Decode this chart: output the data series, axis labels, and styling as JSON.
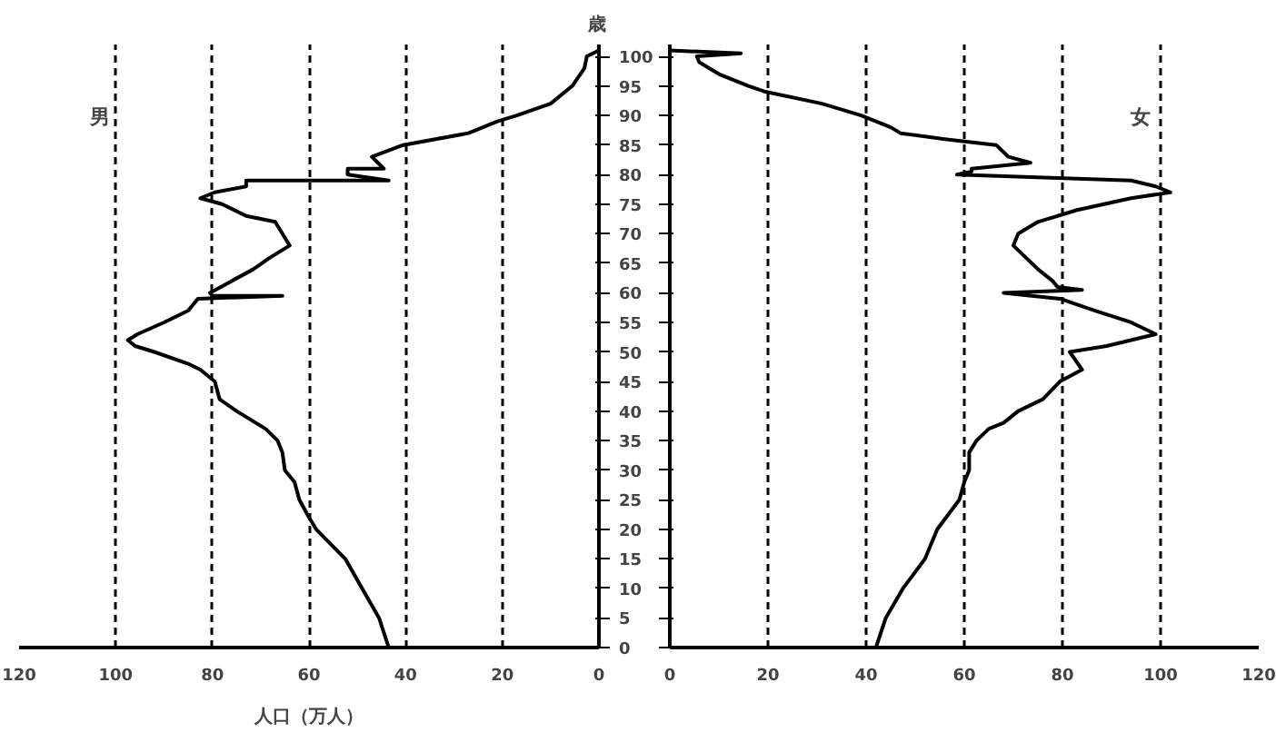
{
  "chart_data": [
    {
      "type": "line",
      "orientation": "horizontal",
      "ylabel": "歳",
      "xlabel": "人口（万人）",
      "xlim": [
        120,
        0
      ],
      "xticks": [
        120,
        100,
        80,
        60,
        40,
        20,
        0
      ],
      "ylim": [
        0,
        102
      ],
      "yticks": [
        0,
        5,
        10,
        15,
        20,
        25,
        30,
        35,
        40,
        45,
        50,
        55,
        60,
        65,
        70,
        75,
        80,
        85,
        90,
        95,
        100
      ],
      "grid": "x",
      "series": [
        {
          "name": "男",
          "color": "#000000",
          "x": [
            0,
            5,
            10,
            15,
            20,
            22,
            25,
            28,
            30,
            33,
            35,
            37,
            40,
            42,
            45,
            47,
            48,
            50,
            51,
            52,
            53,
            55,
            57,
            59,
            59.5,
            59.5,
            60,
            62,
            64,
            66,
            68,
            70,
            72,
            73,
            75,
            76,
            77,
            78,
            79,
            79,
            80,
            81,
            81,
            83,
            85,
            87,
            89,
            90,
            92,
            95,
            98,
            100,
            101
          ],
          "values": [
            43.5,
            45.5,
            49,
            52.5,
            58.5,
            60,
            62,
            63,
            65,
            65.5,
            66.5,
            69,
            75,
            78.5,
            79.5,
            82.5,
            85,
            92,
            96,
            97.5,
            95.5,
            90,
            85,
            83,
            65.5,
            80,
            80.5,
            76,
            71.5,
            68,
            64,
            65.5,
            67,
            73,
            78,
            82.5,
            79.5,
            73,
            73,
            43.5,
            52,
            52,
            44.5,
            47,
            40.5,
            27,
            21,
            17,
            10,
            5.5,
            3,
            2.5,
            0
          ]
        }
      ]
    },
    {
      "type": "line",
      "orientation": "horizontal",
      "xlim": [
        0,
        120
      ],
      "xticks": [
        0,
        20,
        40,
        60,
        80,
        100,
        120
      ],
      "ylim": [
        0,
        102
      ],
      "yticks": [
        0,
        5,
        10,
        15,
        20,
        25,
        30,
        35,
        40,
        45,
        50,
        55,
        60,
        65,
        70,
        75,
        80,
        85,
        90,
        95,
        100
      ],
      "grid": "x",
      "tick_labels": "x",
      "series": [
        {
          "name": "女",
          "color": "#000000",
          "x": [
            0,
            5,
            10,
            15,
            20,
            25,
            28,
            30,
            33,
            35,
            37,
            38,
            40,
            42,
            45,
            47,
            50,
            51,
            53,
            55,
            57,
            59,
            60,
            60.5,
            61,
            62,
            64,
            66,
            68,
            70,
            72,
            74,
            76,
            77,
            78,
            79,
            80,
            80.5,
            81,
            82,
            83,
            85,
            86,
            87,
            88,
            90,
            92,
            94,
            95,
            97,
            99,
            100,
            100.5,
            101
          ],
          "values": [
            42,
            44,
            47.5,
            52,
            54.5,
            59,
            60,
            61,
            61,
            62.5,
            65,
            68,
            71,
            76,
            79.5,
            84,
            81.5,
            89,
            99,
            94,
            86.5,
            79.5,
            68,
            84,
            79,
            78,
            75,
            72.5,
            70,
            71,
            75,
            83,
            94,
            102,
            99,
            94,
            58.5,
            61.5,
            61.5,
            73.5,
            69,
            66.5,
            56,
            47,
            45,
            39,
            31,
            19.5,
            16,
            10,
            6,
            5.5,
            14.5,
            0
          ]
        }
      ]
    }
  ]
}
